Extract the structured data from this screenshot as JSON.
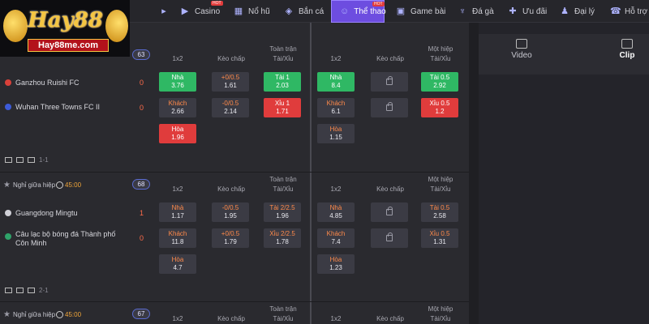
{
  "nav": {
    "items": [
      {
        "label": "Casino",
        "icon": "casino-icon",
        "hot": true
      },
      {
        "label": "Nổ hũ",
        "icon": "slot-icon",
        "hot": false
      },
      {
        "label": "Bắn cá",
        "icon": "fish-icon",
        "hot": false
      },
      {
        "label": "Thể thao",
        "icon": "sports-icon",
        "hot": true,
        "active": true
      },
      {
        "label": "Game bài",
        "icon": "cards-icon",
        "hot": false
      },
      {
        "label": "Đá gà",
        "icon": "rooster-icon",
        "hot": false
      },
      {
        "label": "Ưu đãi",
        "icon": "gift-icon",
        "hot": false
      },
      {
        "label": "Đại lý",
        "icon": "agent-icon",
        "hot": false
      },
      {
        "label": "Hỗ trợ",
        "icon": "support-icon",
        "hot": false
      }
    ],
    "hot_label": "HOT"
  },
  "logo": {
    "text": "Hay88",
    "banner": "Hay88me.com"
  },
  "right_panel": {
    "tabs": [
      {
        "label": "Video",
        "icon": "video-icon"
      },
      {
        "label": "Clip",
        "icon": "clip-icon",
        "active": true
      }
    ]
  },
  "columns": {
    "ft_1x2": "1x2",
    "ft_handicap": "Kèo chấp",
    "ft_ou_line1": "Toàn trận",
    "ft_ou_line2": "Tài/Xỉu",
    "h1_1x2": "1x2",
    "h1_handicap": "Kèo chấp",
    "h1_ou_line1": "Một hiệp",
    "h1_ou_line2": "Tài/Xỉu"
  },
  "matches": [
    {
      "count": "63",
      "status": "",
      "time": "",
      "home": {
        "name": "Ganzhou Ruishi FC",
        "score": "0",
        "color": "#d9413a"
      },
      "away": {
        "name": "Wuhan Three Towns FC II",
        "score": "0",
        "color": "#3d5bd9"
      },
      "ft_1x2": [
        {
          "label": "Nhà",
          "value": "3.76"
        },
        {
          "label": "Khách",
          "value": "2.66"
        },
        {
          "label": "Hòa",
          "value": "1.96"
        }
      ],
      "ft_handicap": [
        {
          "label": "+0/0.5",
          "value": "1.61"
        },
        {
          "label": "-0/0.5",
          "value": "2.14"
        }
      ],
      "ft_ou": [
        {
          "label": "Tài 1",
          "value": "2.03"
        },
        {
          "label": "Xỉu 1",
          "value": "1.71"
        }
      ],
      "h1_1x2": [
        {
          "label": "Nhà",
          "value": "8.4"
        },
        {
          "label": "Khách",
          "value": "6.1"
        },
        {
          "label": "Hòa",
          "value": "1.15"
        }
      ],
      "h1_ou": [
        {
          "label": "Tài 0.5",
          "value": "2.92"
        },
        {
          "label": "Xỉu 0.5",
          "value": "1.2"
        }
      ],
      "ht_score": "1-1"
    },
    {
      "count": "68",
      "status": "Nghỉ giữa hiệp",
      "time": "45:00",
      "home": {
        "name": "Guangdong Mingtu",
        "score": "1",
        "color": "#cfcfd6"
      },
      "away": {
        "name": "Câu lạc bộ bóng đá Thành phố Côn Minh",
        "score": "0",
        "color": "#2fa36a"
      },
      "ft_1x2": [
        {
          "label": "Nhà",
          "value": "1.17"
        },
        {
          "label": "Khách",
          "value": "11.8"
        },
        {
          "label": "Hòa",
          "value": "4.7"
        }
      ],
      "ft_handicap": [
        {
          "label": "-0/0.5",
          "value": "1.95"
        },
        {
          "label": "+0/0.5",
          "value": "1.79"
        }
      ],
      "ft_ou": [
        {
          "label": "Tài 2/2.5",
          "value": "1.96"
        },
        {
          "label": "Xỉu 2/2.5",
          "value": "1.78"
        }
      ],
      "h1_1x2": [
        {
          "label": "Nhà",
          "value": "4.85"
        },
        {
          "label": "Khách",
          "value": "7.4"
        },
        {
          "label": "Hòa",
          "value": "1.23"
        }
      ],
      "h1_ou": [
        {
          "label": "Tài 0.5",
          "value": "2.58"
        },
        {
          "label": "Xỉu 0.5",
          "value": "1.31"
        }
      ],
      "ht_score": "2-1"
    },
    {
      "count": "67",
      "status": "Nghỉ giữa hiệp",
      "time": "45:00"
    }
  ]
}
